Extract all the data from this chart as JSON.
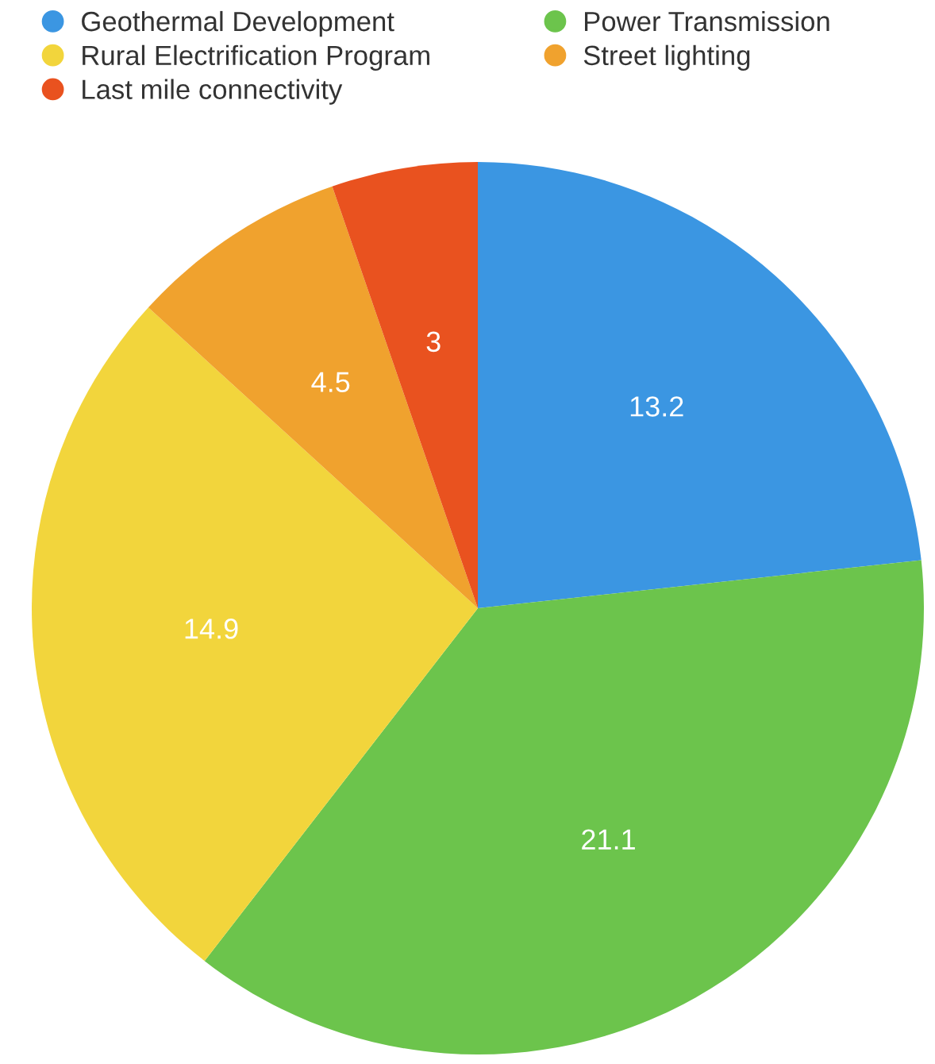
{
  "chart_data": {
    "type": "pie",
    "categories": [
      "Geothermal Development",
      "Power Transmission",
      "Rural Electrification Program",
      "Street lighting",
      "Last mile connectivity"
    ],
    "values": [
      13.2,
      21.1,
      14.9,
      4.5,
      3
    ],
    "colors": [
      "#3b96e2",
      "#6cc44c",
      "#f2d53c",
      "#f0a22e",
      "#e9521f"
    ],
    "data_labels": true,
    "legend": "top",
    "marker": "circle"
  }
}
